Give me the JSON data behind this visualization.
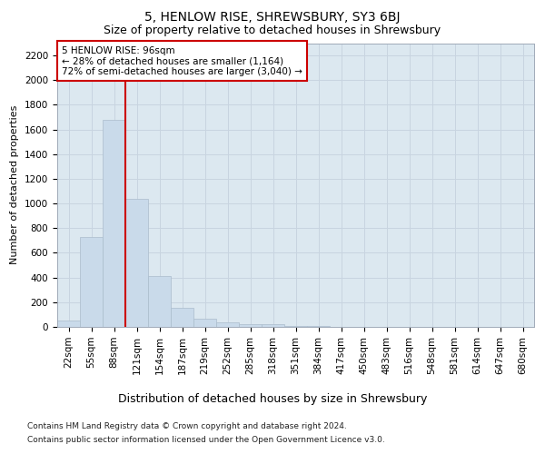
{
  "title": "5, HENLOW RISE, SHREWSBURY, SY3 6BJ",
  "subtitle": "Size of property relative to detached houses in Shrewsbury",
  "xlabel": "Distribution of detached houses by size in Shrewsbury",
  "ylabel": "Number of detached properties",
  "footer_line1": "Contains HM Land Registry data © Crown copyright and database right 2024.",
  "footer_line2": "Contains public sector information licensed under the Open Government Licence v3.0.",
  "bin_labels": [
    "22sqm",
    "55sqm",
    "88sqm",
    "121sqm",
    "154sqm",
    "187sqm",
    "219sqm",
    "252sqm",
    "285sqm",
    "318sqm",
    "351sqm",
    "384sqm",
    "417sqm",
    "450sqm",
    "483sqm",
    "516sqm",
    "548sqm",
    "581sqm",
    "614sqm",
    "647sqm",
    "680sqm"
  ],
  "bar_values": [
    50,
    730,
    1680,
    1040,
    415,
    155,
    65,
    35,
    20,
    20,
    10,
    5,
    0,
    0,
    0,
    0,
    0,
    0,
    0,
    0,
    0
  ],
  "bar_color": "#c9daea",
  "bar_edge_color": "#aabccc",
  "grid_color": "#c8d4e0",
  "property_line_color": "#cc0000",
  "annotation_line1": "5 HENLOW RISE: 96sqm",
  "annotation_line2": "← 28% of detached houses are smaller (1,164)",
  "annotation_line3": "72% of semi-detached houses are larger (3,040) →",
  "annotation_box_color": "#ffffff",
  "annotation_box_edge_color": "#cc0000",
  "ylim": [
    0,
    2300
  ],
  "yticks": [
    0,
    200,
    400,
    600,
    800,
    1000,
    1200,
    1400,
    1600,
    1800,
    2000,
    2200
  ],
  "fig_background_color": "#ffffff",
  "plot_background_color": "#dce8f0",
  "title_fontsize": 10,
  "subtitle_fontsize": 9,
  "xlabel_fontsize": 9,
  "ylabel_fontsize": 8,
  "tick_fontsize": 7.5,
  "annotation_fontsize": 7.5,
  "footer_fontsize": 6.5
}
